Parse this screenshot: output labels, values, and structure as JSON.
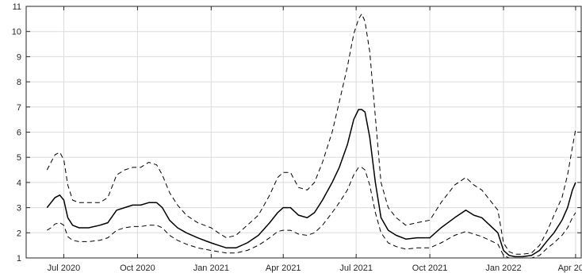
{
  "chart_data": {
    "type": "line",
    "title": "",
    "xlabel": "",
    "ylabel": "",
    "grid": true,
    "legend": "none",
    "xlim": [
      "2020-05-15",
      "2022-04-08"
    ],
    "ylim": [
      1,
      11
    ],
    "x_ticks": [
      "2020-07-01",
      "2020-10-01",
      "2021-01-01",
      "2021-04-01",
      "2021-07-01",
      "2021-10-01",
      "2022-01-01",
      "2022-04-01"
    ],
    "x_tick_labels": [
      "Jul 2020",
      "Oct 2020",
      "Jan 2021",
      "Apr 2021",
      "Jul 2021",
      "Oct 2021",
      "Jan 2022",
      "Apr 2022"
    ],
    "y_ticks": [
      1,
      2,
      3,
      4,
      5,
      6,
      7,
      8,
      9,
      10,
      11
    ],
    "y_tick_labels": [
      "1",
      "2",
      "3",
      "4",
      "5",
      "6",
      "7",
      "8",
      "9",
      "10",
      "11"
    ],
    "colors": {
      "line": "#000000",
      "grid": "#dcdcdc",
      "axis": "#262626"
    },
    "series": [
      {
        "style": "solid",
        "x": [
          "2020-06-10",
          "2020-06-15",
          "2020-06-20",
          "2020-06-26",
          "2020-07-01",
          "2020-07-06",
          "2020-07-12",
          "2020-07-20",
          "2020-08-01",
          "2020-08-15",
          "2020-08-25",
          "2020-09-05",
          "2020-09-15",
          "2020-09-25",
          "2020-10-05",
          "2020-10-15",
          "2020-10-25",
          "2020-11-01",
          "2020-11-10",
          "2020-11-20",
          "2020-12-01",
          "2020-12-15",
          "2021-01-01",
          "2021-01-10",
          "2021-01-20",
          "2021-02-01",
          "2021-02-15",
          "2021-03-01",
          "2021-03-15",
          "2021-03-25",
          "2021-04-01",
          "2021-04-10",
          "2021-04-20",
          "2021-05-01",
          "2021-05-10",
          "2021-05-20",
          "2021-06-01",
          "2021-06-10",
          "2021-06-20",
          "2021-06-28",
          "2021-07-04",
          "2021-07-08",
          "2021-07-12",
          "2021-07-18",
          "2021-07-25",
          "2021-08-01",
          "2021-08-10",
          "2021-08-20",
          "2021-09-01",
          "2021-09-15",
          "2021-10-01",
          "2021-10-15",
          "2021-11-01",
          "2021-11-15",
          "2021-11-25",
          "2021-12-05",
          "2021-12-15",
          "2021-12-25",
          "2022-01-01",
          "2022-01-08",
          "2022-01-15",
          "2022-01-25",
          "2022-02-05",
          "2022-02-15",
          "2022-02-25",
          "2022-03-05",
          "2022-03-15",
          "2022-03-22",
          "2022-03-28",
          "2022-04-01"
        ],
        "y": [
          3.0,
          3.2,
          3.4,
          3.5,
          3.3,
          2.6,
          2.3,
          2.2,
          2.2,
          2.3,
          2.4,
          2.9,
          3.0,
          3.1,
          3.1,
          3.2,
          3.2,
          3.0,
          2.5,
          2.2,
          2.0,
          1.8,
          1.6,
          1.5,
          1.4,
          1.4,
          1.6,
          1.9,
          2.4,
          2.8,
          3.0,
          3.0,
          2.7,
          2.6,
          2.8,
          3.3,
          4.0,
          4.6,
          5.5,
          6.5,
          6.9,
          6.9,
          6.8,
          5.8,
          4.0,
          2.6,
          2.1,
          1.9,
          1.75,
          1.8,
          1.8,
          2.2,
          2.6,
          2.9,
          2.7,
          2.6,
          2.3,
          2.0,
          1.3,
          1.1,
          1.05,
          1.05,
          1.1,
          1.3,
          1.7,
          2.0,
          2.5,
          3.0,
          3.7,
          4.0
        ]
      },
      {
        "style": "dashed",
        "x": [
          "2020-06-10",
          "2020-06-15",
          "2020-06-20",
          "2020-06-26",
          "2020-07-01",
          "2020-07-06",
          "2020-07-12",
          "2020-07-20",
          "2020-08-01",
          "2020-08-15",
          "2020-08-25",
          "2020-09-05",
          "2020-09-15",
          "2020-09-25",
          "2020-10-05",
          "2020-10-15",
          "2020-10-25",
          "2020-11-01",
          "2020-11-10",
          "2020-11-20",
          "2020-12-01",
          "2020-12-15",
          "2021-01-01",
          "2021-01-10",
          "2021-01-20",
          "2021-02-01",
          "2021-02-15",
          "2021-03-01",
          "2021-03-15",
          "2021-03-25",
          "2021-04-01",
          "2021-04-10",
          "2021-04-20",
          "2021-05-01",
          "2021-05-10",
          "2021-05-20",
          "2021-06-01",
          "2021-06-10",
          "2021-06-20",
          "2021-06-28",
          "2021-07-04",
          "2021-07-08",
          "2021-07-12",
          "2021-07-18",
          "2021-07-25",
          "2021-08-01",
          "2021-08-10",
          "2021-08-20",
          "2021-09-01",
          "2021-09-15",
          "2021-10-01",
          "2021-10-15",
          "2021-11-01",
          "2021-11-15",
          "2021-11-25",
          "2021-12-05",
          "2021-12-15",
          "2021-12-25",
          "2022-01-01",
          "2022-01-08",
          "2022-01-15",
          "2022-01-25",
          "2022-02-05",
          "2022-02-15",
          "2022-02-25",
          "2022-03-05",
          "2022-03-15",
          "2022-03-22",
          "2022-03-28",
          "2022-04-01"
        ],
        "y": [
          4.5,
          4.8,
          5.1,
          5.2,
          4.9,
          3.9,
          3.3,
          3.2,
          3.2,
          3.2,
          3.4,
          4.3,
          4.5,
          4.6,
          4.6,
          4.8,
          4.7,
          4.3,
          3.6,
          3.1,
          2.7,
          2.4,
          2.2,
          2.0,
          1.8,
          1.9,
          2.3,
          2.7,
          3.5,
          4.2,
          4.4,
          4.4,
          3.8,
          3.7,
          4.0,
          4.8,
          6.0,
          7.2,
          8.6,
          9.9,
          10.5,
          10.7,
          10.4,
          9.2,
          6.6,
          4.0,
          3.0,
          2.6,
          2.3,
          2.4,
          2.5,
          3.2,
          3.9,
          4.2,
          3.9,
          3.7,
          3.3,
          2.9,
          1.6,
          1.25,
          1.15,
          1.15,
          1.2,
          1.5,
          2.1,
          2.7,
          3.4,
          4.3,
          5.4,
          6.1
        ]
      },
      {
        "style": "dashed",
        "x": [
          "2020-06-10",
          "2020-06-15",
          "2020-06-20",
          "2020-06-26",
          "2020-07-01",
          "2020-07-06",
          "2020-07-12",
          "2020-07-20",
          "2020-08-01",
          "2020-08-15",
          "2020-08-25",
          "2020-09-05",
          "2020-09-15",
          "2020-09-25",
          "2020-10-05",
          "2020-10-15",
          "2020-10-25",
          "2020-11-01",
          "2020-11-10",
          "2020-11-20",
          "2020-12-01",
          "2020-12-15",
          "2021-01-01",
          "2021-01-10",
          "2021-01-20",
          "2021-02-01",
          "2021-02-15",
          "2021-03-01",
          "2021-03-15",
          "2021-03-25",
          "2021-04-01",
          "2021-04-10",
          "2021-04-20",
          "2021-05-01",
          "2021-05-10",
          "2021-05-20",
          "2021-06-01",
          "2021-06-10",
          "2021-06-20",
          "2021-06-28",
          "2021-07-04",
          "2021-07-08",
          "2021-07-12",
          "2021-07-18",
          "2021-07-25",
          "2021-08-01",
          "2021-08-10",
          "2021-08-20",
          "2021-09-01",
          "2021-09-15",
          "2021-10-01",
          "2021-10-15",
          "2021-11-01",
          "2021-11-15",
          "2021-11-25",
          "2021-12-05",
          "2021-12-15",
          "2021-12-25",
          "2022-01-01",
          "2022-01-08",
          "2022-01-15",
          "2022-01-25",
          "2022-02-05",
          "2022-02-15",
          "2022-02-25",
          "2022-03-05",
          "2022-03-15",
          "2022-03-22",
          "2022-03-28",
          "2022-04-01"
        ],
        "y": [
          2.1,
          2.2,
          2.35,
          2.4,
          2.3,
          1.85,
          1.7,
          1.65,
          1.65,
          1.7,
          1.8,
          2.1,
          2.2,
          2.25,
          2.25,
          2.3,
          2.3,
          2.2,
          1.9,
          1.7,
          1.55,
          1.4,
          1.3,
          1.25,
          1.2,
          1.2,
          1.3,
          1.5,
          1.8,
          2.05,
          2.1,
          2.1,
          1.95,
          1.9,
          2.0,
          2.3,
          2.8,
          3.2,
          3.7,
          4.3,
          4.6,
          4.6,
          4.5,
          3.9,
          2.8,
          2.0,
          1.6,
          1.45,
          1.35,
          1.4,
          1.4,
          1.6,
          1.9,
          2.05,
          1.95,
          1.85,
          1.7,
          1.55,
          1.1,
          1.0,
          1.0,
          1.0,
          1.0,
          1.1,
          1.4,
          1.6,
          1.9,
          2.2,
          2.6,
          2.8
        ]
      }
    ]
  }
}
